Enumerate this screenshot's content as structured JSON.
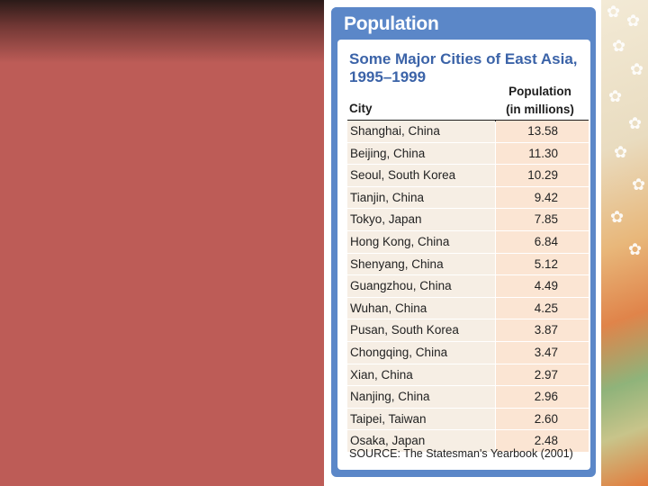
{
  "tab_title": "Population",
  "chart_data": {
    "type": "table",
    "title": "Some Major Cities of East Asia,",
    "subtitle": "1995–1999",
    "columns": [
      "City",
      "Population",
      "(in millions)"
    ],
    "rows": [
      {
        "city": "Shanghai, China",
        "population": "13.58"
      },
      {
        "city": "Beijing, China",
        "population": "11.30"
      },
      {
        "city": "Seoul, South Korea",
        "population": "10.29"
      },
      {
        "city": "Tianjin, China",
        "population": "9.42"
      },
      {
        "city": "Tokyo, Japan",
        "population": "7.85"
      },
      {
        "city": "Hong Kong, China",
        "population": "6.84"
      },
      {
        "city": "Shenyang, China",
        "population": "5.12"
      },
      {
        "city": "Guangzhou, China",
        "population": "4.49"
      },
      {
        "city": "Wuhan, China",
        "population": "4.25"
      },
      {
        "city": "Pusan, South Korea",
        "population": "3.87"
      },
      {
        "city": "Chongqing, China",
        "population": "3.47"
      },
      {
        "city": "Xian, China",
        "population": "2.97"
      },
      {
        "city": "Nanjing, China",
        "population": "2.96"
      },
      {
        "city": "Taipei, Taiwan",
        "population": "2.60"
      },
      {
        "city": "Osaka, Japan",
        "population": "2.48"
      }
    ],
    "source": "SOURCE: The Statesman's Yearbook (2001)"
  },
  "colors": {
    "background_panel": "#bd5c57",
    "card_blue": "#5b87c8",
    "title_blue": "#3b63a8",
    "city_cell": "#f6eee4",
    "value_cell": "#fbe5d3"
  }
}
